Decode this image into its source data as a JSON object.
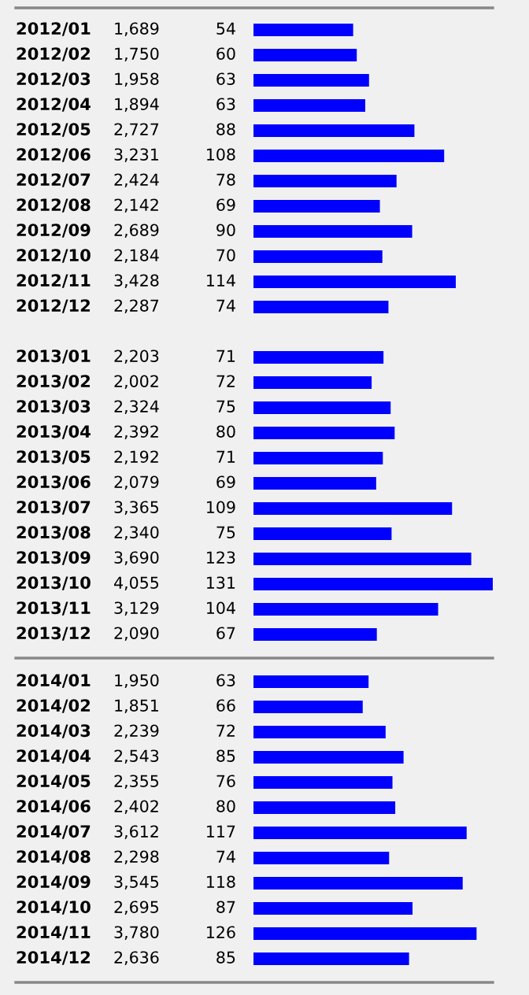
{
  "chart_data": [
    {
      "type": "bar",
      "orientation": "horizontal",
      "color": "#0000ff",
      "xlim": [
        0,
        4055
      ],
      "tick_labels": "y",
      "categories": [
        "2012/01",
        "2012/02",
        "2012/03",
        "2012/04",
        "2012/05",
        "2012/06",
        "2012/07",
        "2012/08",
        "2012/09",
        "2012/10",
        "2012/11",
        "2012/12"
      ],
      "values": [
        1689,
        1750,
        1958,
        1894,
        2727,
        3231,
        2424,
        2142,
        2689,
        2184,
        3428,
        2287
      ],
      "value_labels": [
        "1,689",
        "1,750",
        "1,958",
        "1,894",
        "2,727",
        "3,231",
        "2,424",
        "2,142",
        "2,689",
        "2,184",
        "3,428",
        "2,287"
      ],
      "annotations": [
        "54",
        "60",
        "63",
        "63",
        "88",
        "108",
        "78",
        "69",
        "90",
        "70",
        "114",
        "74"
      ]
    },
    {
      "type": "bar",
      "orientation": "horizontal",
      "color": "#0000ff",
      "xlim": [
        0,
        4055
      ],
      "tick_labels": "y",
      "categories": [
        "2013/01",
        "2013/02",
        "2013/03",
        "2013/04",
        "2013/05",
        "2013/06",
        "2013/07",
        "2013/08",
        "2013/09",
        "2013/10",
        "2013/11",
        "2013/12"
      ],
      "values": [
        2203,
        2002,
        2324,
        2392,
        2192,
        2079,
        3365,
        2340,
        3690,
        4055,
        3129,
        2090
      ],
      "value_labels": [
        "2,203",
        "2,002",
        "2,324",
        "2,392",
        "2,192",
        "2,079",
        "3,365",
        "2,340",
        "3,690",
        "4,055",
        "3,129",
        "2,090"
      ],
      "annotations": [
        "71",
        "72",
        "75",
        "80",
        "71",
        "69",
        "109",
        "75",
        "123",
        "131",
        "104",
        "67"
      ]
    },
    {
      "type": "bar",
      "orientation": "horizontal",
      "color": "#0000ff",
      "xlim": [
        0,
        4055
      ],
      "tick_labels": "y",
      "categories": [
        "2014/01",
        "2014/02",
        "2014/03",
        "2014/04",
        "2014/05",
        "2014/06",
        "2014/07",
        "2014/08",
        "2014/09",
        "2014/10",
        "2014/11",
        "2014/12"
      ],
      "values": [
        1950,
        1851,
        2239,
        2543,
        2355,
        2402,
        3612,
        2298,
        3545,
        2695,
        3780,
        2636
      ],
      "value_labels": [
        "1,950",
        "1,851",
        "2,239",
        "2,543",
        "2,355",
        "2,402",
        "3,612",
        "2,298",
        "3,545",
        "2,695",
        "3,780",
        "2,636"
      ],
      "annotations": [
        "63",
        "66",
        "72",
        "85",
        "76",
        "80",
        "117",
        "74",
        "118",
        "87",
        "126",
        "85"
      ]
    }
  ]
}
